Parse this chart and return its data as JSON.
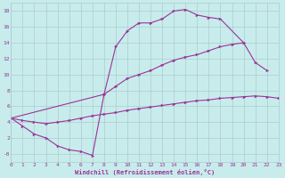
{
  "bg_color": "#c8ecec",
  "line_color": "#993399",
  "grid_color": "#aacccc",
  "xlabel": "Windchill (Refroidissement éolien,°C)",
  "xlim": [
    0,
    23
  ],
  "ylim": [
    -1.0,
    19.0
  ],
  "xticks": [
    0,
    1,
    2,
    3,
    4,
    5,
    6,
    7,
    8,
    9,
    10,
    11,
    12,
    13,
    14,
    15,
    16,
    17,
    18,
    19,
    20,
    21,
    22,
    23
  ],
  "yticks": [
    0,
    2,
    4,
    6,
    8,
    10,
    12,
    14,
    16,
    18
  ],
  "curve1_x": [
    0,
    1,
    2,
    3,
    4,
    5,
    6,
    7,
    8,
    9,
    10,
    11,
    12,
    13,
    14,
    15,
    16,
    17,
    18,
    20,
    21,
    22
  ],
  "curve1_y": [
    4.5,
    3.5,
    2.5,
    2.0,
    1.0,
    0.5,
    0.3,
    -0.2,
    7.5,
    13.5,
    15.5,
    16.5,
    16.5,
    17.0,
    18.0,
    18.2,
    17.5,
    17.2,
    17.0,
    14.0,
    11.5,
    10.5
  ],
  "curve2_x": [
    0,
    8,
    9,
    10,
    11,
    12,
    13,
    14,
    15,
    16,
    17,
    18,
    19,
    20
  ],
  "curve2_y": [
    4.5,
    7.5,
    8.5,
    9.5,
    10.0,
    10.5,
    11.2,
    11.8,
    12.2,
    12.5,
    13.0,
    13.5,
    13.8,
    14.0
  ],
  "curve3_x": [
    0,
    1,
    2,
    3,
    4,
    5,
    6,
    7,
    8,
    9,
    10,
    11,
    12,
    13,
    14,
    15,
    16,
    17,
    18,
    19,
    20,
    21,
    22,
    23
  ],
  "curve3_y": [
    4.5,
    4.2,
    4.0,
    3.8,
    4.0,
    4.2,
    4.5,
    4.8,
    5.0,
    5.2,
    5.5,
    5.7,
    5.9,
    6.1,
    6.3,
    6.5,
    6.7,
    6.8,
    7.0,
    7.1,
    7.2,
    7.3,
    7.2,
    7.0
  ]
}
